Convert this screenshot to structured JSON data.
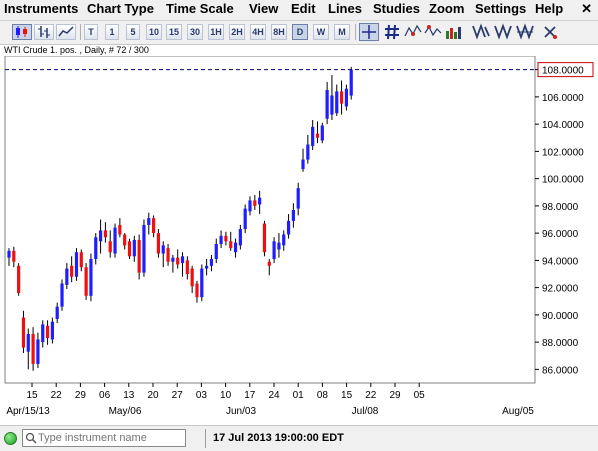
{
  "menu": {
    "items": [
      "Instruments",
      "Chart Type",
      "Time Scale",
      "View",
      "Edit",
      "Lines",
      "Studies",
      "Zoom",
      "Settings",
      "Help"
    ],
    "close_icon": "close-x-icon"
  },
  "toolbar": {
    "chart_types": [
      "candlestick-icon",
      "ohlc-bar-icon",
      "line-chart-icon"
    ],
    "timeframes": [
      "T",
      "1",
      "5",
      "10",
      "15",
      "30",
      "1H",
      "2H",
      "4H",
      "8H",
      "D",
      "W",
      "M"
    ],
    "active_timeframe": "D",
    "tools": [
      "crosshair-icon",
      "grid-icon",
      "studies-icon-1",
      "studies-icon-2",
      "studies-icon-3",
      "volume-icon",
      "line-tool-icon-1",
      "line-tool-icon-2",
      "line-tool-icon-3",
      "line-tool-icon-4",
      "eraser-icon"
    ]
  },
  "chart_header": "WTI Crude 1. pos. , Daily, # 72 / 300",
  "current_price_label": "108.0000",
  "status": {
    "search_placeholder": "Type instrument name",
    "datetime": "17 Jul 2013 19:00:00 EDT"
  },
  "colors": {
    "up_candle": "#1e1eff",
    "down_candle": "#ee1111",
    "price_line": "#000080"
  },
  "chart_data": {
    "type": "candlestick",
    "y_ticks": [
      "86.0000",
      "88.0000",
      "90.0000",
      "92.0000",
      "94.0000",
      "96.0000",
      "98.0000",
      "100.0000",
      "102.0000",
      "104.0000",
      "106.0000",
      "108.0000"
    ],
    "ylim": [
      85.0,
      109.0
    ],
    "x_ticks": [
      "15",
      "22",
      "29",
      "06",
      "13",
      "20",
      "27",
      "03",
      "10",
      "17",
      "24",
      "01",
      "08",
      "15",
      "22",
      "29",
      "05"
    ],
    "month_labels": [
      "Apr/15/13",
      "May/06",
      "Jun/03",
      "Jul/08",
      "Aug/05"
    ],
    "candles": [
      {
        "o": 94.2,
        "h": 94.9,
        "l": 93.6,
        "c": 94.7
      },
      {
        "o": 94.7,
        "h": 95.0,
        "l": 93.5,
        "c": 93.9
      },
      {
        "o": 93.6,
        "h": 93.8,
        "l": 91.4,
        "c": 91.6
      },
      {
        "o": 89.8,
        "h": 90.3,
        "l": 87.2,
        "c": 87.6
      },
      {
        "o": 87.3,
        "h": 89.0,
        "l": 86.0,
        "c": 88.6
      },
      {
        "o": 88.6,
        "h": 89.1,
        "l": 85.9,
        "c": 86.4
      },
      {
        "o": 86.4,
        "h": 88.7,
        "l": 86.1,
        "c": 88.2
      },
      {
        "o": 88.0,
        "h": 89.6,
        "l": 87.6,
        "c": 89.3
      },
      {
        "o": 89.2,
        "h": 89.6,
        "l": 87.8,
        "c": 88.3
      },
      {
        "o": 88.2,
        "h": 89.8,
        "l": 87.9,
        "c": 89.5
      },
      {
        "o": 89.7,
        "h": 90.9,
        "l": 89.4,
        "c": 90.6
      },
      {
        "o": 90.6,
        "h": 92.6,
        "l": 90.3,
        "c": 92.3
      },
      {
        "o": 92.2,
        "h": 93.8,
        "l": 91.9,
        "c": 93.4
      },
      {
        "o": 93.6,
        "h": 94.3,
        "l": 92.4,
        "c": 92.8
      },
      {
        "o": 92.8,
        "h": 94.9,
        "l": 92.5,
        "c": 94.6
      },
      {
        "o": 94.6,
        "h": 94.8,
        "l": 93.2,
        "c": 93.5
      },
      {
        "o": 93.5,
        "h": 93.8,
        "l": 91.1,
        "c": 91.4
      },
      {
        "o": 91.4,
        "h": 94.5,
        "l": 91.0,
        "c": 94.1
      },
      {
        "o": 94.1,
        "h": 96.0,
        "l": 93.7,
        "c": 95.7
      },
      {
        "o": 95.4,
        "h": 97.0,
        "l": 94.5,
        "c": 96.2
      },
      {
        "o": 96.2,
        "h": 96.8,
        "l": 95.3,
        "c": 95.7
      },
      {
        "o": 95.4,
        "h": 96.2,
        "l": 94.2,
        "c": 94.6
      },
      {
        "o": 94.5,
        "h": 96.7,
        "l": 94.2,
        "c": 96.4
      },
      {
        "o": 96.6,
        "h": 97.1,
        "l": 95.7,
        "c": 95.9
      },
      {
        "o": 95.9,
        "h": 96.0,
        "l": 94.8,
        "c": 95.1
      },
      {
        "o": 95.4,
        "h": 95.6,
        "l": 94.1,
        "c": 94.3
      },
      {
        "o": 94.3,
        "h": 95.8,
        "l": 93.9,
        "c": 95.5
      },
      {
        "o": 95.5,
        "h": 95.9,
        "l": 92.6,
        "c": 93.1
      },
      {
        "o": 93.1,
        "h": 97.0,
        "l": 92.8,
        "c": 96.6
      },
      {
        "o": 96.6,
        "h": 97.5,
        "l": 95.9,
        "c": 97.1
      },
      {
        "o": 97.1,
        "h": 97.3,
        "l": 95.7,
        "c": 96.0
      },
      {
        "o": 96.0,
        "h": 96.3,
        "l": 94.2,
        "c": 94.5
      },
      {
        "o": 94.5,
        "h": 95.4,
        "l": 93.5,
        "c": 95.1
      },
      {
        "o": 94.9,
        "h": 95.2,
        "l": 93.6,
        "c": 93.9
      },
      {
        "o": 93.9,
        "h": 94.4,
        "l": 93.1,
        "c": 94.2
      },
      {
        "o": 94.2,
        "h": 94.8,
        "l": 93.4,
        "c": 93.7
      },
      {
        "o": 93.8,
        "h": 94.6,
        "l": 92.8,
        "c": 94.3
      },
      {
        "o": 94.0,
        "h": 94.3,
        "l": 92.6,
        "c": 93.0
      },
      {
        "o": 93.4,
        "h": 93.6,
        "l": 91.6,
        "c": 92.1
      },
      {
        "o": 92.3,
        "h": 92.5,
        "l": 90.9,
        "c": 91.3
      },
      {
        "o": 91.3,
        "h": 93.7,
        "l": 91.0,
        "c": 93.4
      },
      {
        "o": 93.4,
        "h": 94.1,
        "l": 92.9,
        "c": 93.6
      },
      {
        "o": 93.6,
        "h": 94.4,
        "l": 93.2,
        "c": 94.1
      },
      {
        "o": 94.1,
        "h": 95.6,
        "l": 93.8,
        "c": 95.2
      },
      {
        "o": 95.2,
        "h": 96.2,
        "l": 94.9,
        "c": 95.8
      },
      {
        "o": 95.8,
        "h": 96.1,
        "l": 95.1,
        "c": 95.4
      },
      {
        "o": 95.4,
        "h": 96.1,
        "l": 94.7,
        "c": 94.9
      },
      {
        "o": 94.6,
        "h": 95.6,
        "l": 94.2,
        "c": 95.3
      },
      {
        "o": 95.1,
        "h": 96.6,
        "l": 94.8,
        "c": 96.3
      },
      {
        "o": 96.3,
        "h": 98.1,
        "l": 96.0,
        "c": 97.8
      },
      {
        "o": 97.6,
        "h": 98.7,
        "l": 97.3,
        "c": 98.4
      },
      {
        "o": 98.4,
        "h": 98.8,
        "l": 97.7,
        "c": 98.0
      },
      {
        "o": 98.1,
        "h": 99.1,
        "l": 97.4,
        "c": 98.6
      },
      {
        "o": 96.7,
        "h": 96.9,
        "l": 94.3,
        "c": 94.6
      },
      {
        "o": 93.9,
        "h": 94.1,
        "l": 92.9,
        "c": 93.6
      },
      {
        "o": 94.1,
        "h": 95.7,
        "l": 93.8,
        "c": 95.4
      },
      {
        "o": 94.8,
        "h": 96.0,
        "l": 94.2,
        "c": 95.3
      },
      {
        "o": 95.1,
        "h": 96.2,
        "l": 94.7,
        "c": 95.9
      },
      {
        "o": 95.9,
        "h": 97.4,
        "l": 95.6,
        "c": 96.9
      },
      {
        "o": 96.9,
        "h": 98.2,
        "l": 96.4,
        "c": 97.7
      },
      {
        "o": 97.8,
        "h": 99.7,
        "l": 97.3,
        "c": 99.3
      },
      {
        "o": 100.7,
        "h": 102.2,
        "l": 100.5,
        "c": 101.4
      },
      {
        "o": 101.4,
        "h": 103.2,
        "l": 101.1,
        "c": 102.5
      },
      {
        "o": 102.4,
        "h": 104.3,
        "l": 102.1,
        "c": 103.8
      },
      {
        "o": 103.3,
        "h": 104.2,
        "l": 102.6,
        "c": 103.0
      },
      {
        "o": 102.8,
        "h": 104.1,
        "l": 102.6,
        "c": 103.9
      },
      {
        "o": 104.4,
        "h": 107.1,
        "l": 104.0,
        "c": 106.5
      },
      {
        "o": 104.7,
        "h": 107.6,
        "l": 104.3,
        "c": 106.1
      },
      {
        "o": 104.8,
        "h": 106.9,
        "l": 104.6,
        "c": 106.4
      },
      {
        "o": 106.4,
        "h": 107.2,
        "l": 104.7,
        "c": 105.5
      },
      {
        "o": 105.3,
        "h": 106.9,
        "l": 105.0,
        "c": 106.6
      },
      {
        "o": 106.1,
        "h": 108.2,
        "l": 105.8,
        "c": 108.0
      }
    ]
  }
}
